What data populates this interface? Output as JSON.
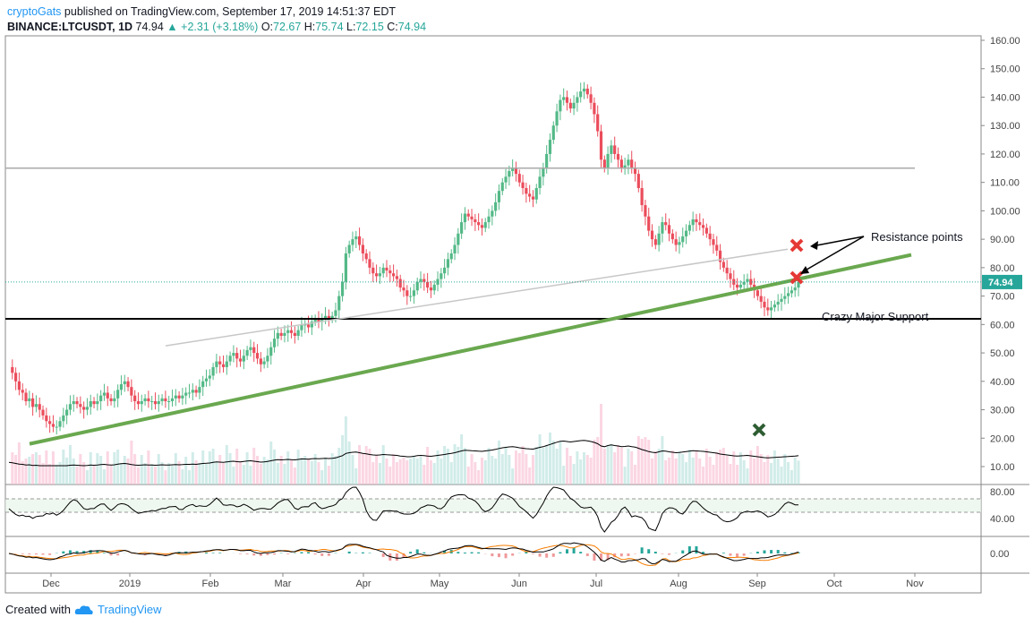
{
  "header": {
    "user": "cryptoGats",
    "published": " published on TradingView.com, September 17, 2019 14:51:37 EDT",
    "symbol": "BINANCE:LTCUSDT, 1D",
    "last": "74.94",
    "change": "+2.31 (+3.18%)",
    "open_label": "O:",
    "open": "72.67",
    "high_label": "H:",
    "high": "75.74",
    "low_label": "L:",
    "low": "72.15",
    "close_label": "C:",
    "close": "74.94"
  },
  "footer": {
    "created": "Created with",
    "brand": "TradingView"
  },
  "chart_data": {
    "type": "candlestick",
    "y_ticks": [
      "160.00",
      "150.00",
      "140.00",
      "130.00",
      "120.00",
      "110.00",
      "100.00",
      "90.00",
      "80.00",
      "70.00",
      "60.00",
      "50.00",
      "40.00",
      "30.00",
      "20.00",
      "10.00"
    ],
    "ylim": [
      5,
      163
    ],
    "x_ticks": [
      "Dec",
      "2019",
      "Feb",
      "Mar",
      "Apr",
      "May",
      "Jun",
      "Jul",
      "Aug",
      "Sep",
      "Oct",
      "Nov"
    ],
    "price_label": "74.94",
    "close_series": [
      45,
      43,
      40,
      37,
      36,
      33,
      34,
      31,
      32,
      30,
      28,
      26,
      25,
      24,
      24,
      26,
      28,
      30,
      32,
      33,
      32,
      31,
      30,
      31,
      33,
      32,
      33,
      35,
      36,
      34,
      33,
      34,
      37,
      39,
      40,
      38,
      35,
      33,
      32,
      33,
      34,
      33,
      33,
      32,
      33,
      34,
      33,
      33,
      34,
      35,
      34,
      35,
      36,
      36,
      37,
      36,
      38,
      40,
      41,
      42,
      45,
      47,
      46,
      45,
      47,
      49,
      50,
      48,
      47,
      49,
      51,
      52,
      50,
      48,
      46,
      47,
      49,
      52,
      55,
      57,
      56,
      57,
      58,
      57,
      56,
      58,
      60,
      60,
      59,
      61,
      62,
      61,
      62,
      63,
      62,
      63,
      65,
      70,
      75,
      85,
      88,
      90,
      91,
      88,
      85,
      83,
      80,
      78,
      77,
      78,
      80,
      79,
      78,
      77,
      76,
      73,
      72,
      70,
      70,
      72,
      75,
      76,
      75,
      73,
      72,
      74,
      76,
      78,
      80,
      83,
      85,
      88,
      92,
      96,
      99,
      98,
      97,
      96,
      95,
      94,
      96,
      98,
      100,
      103,
      107,
      110,
      112,
      114,
      115,
      113,
      110,
      108,
      106,
      105,
      104,
      108,
      112,
      115,
      120,
      125,
      130,
      135,
      139,
      140,
      138,
      136,
      138,
      140,
      142,
      143,
      141,
      138,
      134,
      128,
      118,
      115,
      120,
      123,
      120,
      118,
      115,
      116,
      118,
      115,
      113,
      108,
      102,
      98,
      93,
      90,
      88,
      92,
      96,
      95,
      92,
      90,
      88,
      89,
      91,
      93,
      95,
      97,
      96,
      95,
      94,
      92,
      90,
      88,
      86,
      82,
      80,
      78,
      76,
      74,
      73,
      74,
      75,
      76,
      74,
      72,
      70,
      68,
      66,
      65,
      66,
      67,
      68,
      69,
      70,
      71,
      72,
      73,
      74.94
    ],
    "horizontal_levels": [
      115,
      62
    ],
    "support_line": {
      "from": [
        0,
        18
      ],
      "to": [
        "Nov",
        84.5
      ]
    },
    "resistance_line": {
      "from": [
        "Jan",
        52.5
      ],
      "to": [
        "Sep",
        86.5
      ]
    },
    "annotations": {
      "resistance": "Resistance points",
      "support": "Crazy Major Support"
    },
    "rsi_ticks": [
      "80.00",
      "40.00"
    ],
    "macd_ticks": [
      "0.00"
    ]
  }
}
